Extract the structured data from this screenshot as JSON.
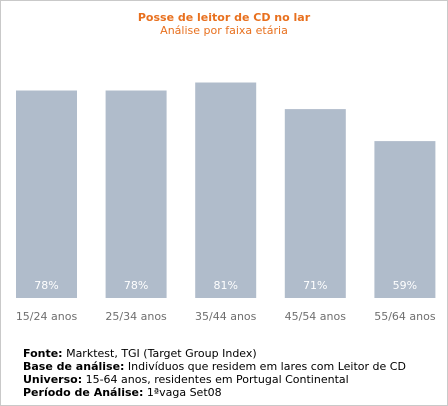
{
  "chart_data": {
    "type": "bar",
    "title": "Posse de leitor de CD no lar",
    "subtitle": "Análise por faixa etária",
    "categories": [
      "15/24 anos",
      "25/34 anos",
      "35/44 anos",
      "45/54 anos",
      "55/64 anos"
    ],
    "values": [
      78,
      78,
      81,
      71,
      59
    ],
    "data_labels": [
      "78%",
      "78%",
      "81%",
      "71%",
      "59%"
    ],
    "unit": "%",
    "ylim": [
      0,
      100
    ],
    "grid": false,
    "legend": "none"
  },
  "colors": {
    "title": "#e8701e",
    "bar": "#b0bccb",
    "bar_label": "#ffffff",
    "category_label": "#6f6f6f"
  },
  "footer": [
    {
      "label": "Fonte:",
      "text": " Marktest, TGI (Target Group Index)"
    },
    {
      "label": "Base de análise:",
      "text": " Indivíduos que residem em lares com Leitor de CD"
    },
    {
      "label": "Universo:",
      "text": " 15-64 anos, residentes em Portugal Continental"
    },
    {
      "label": "Período de Análise:",
      "text": " 1ªvaga Set08"
    }
  ]
}
